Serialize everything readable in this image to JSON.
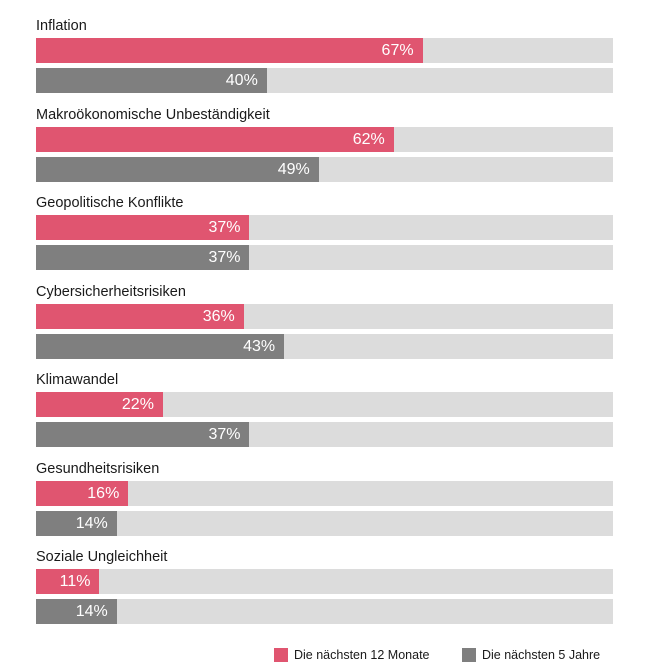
{
  "chart_data": {
    "type": "bar",
    "orientation": "horizontal",
    "categories": [
      "Inflation",
      "Makroökonomische Unbeständigkeit",
      "Geopolitische Konflikte",
      "Cybersicherheitsrisiken",
      "Klimawandel",
      "Gesundheitsrisiken",
      "Soziale Ungleichheit"
    ],
    "series": [
      {
        "name": "Die nächsten 12 Monate",
        "color": "#e05570",
        "values": [
          67,
          62,
          37,
          36,
          22,
          16,
          11
        ],
        "labels": [
          "67%",
          "62%",
          "37%",
          "36%",
          "22%",
          "16%",
          "11%"
        ]
      },
      {
        "name": "Die nächsten 5 Jahre",
        "color": "#7f7f7f",
        "values": [
          40,
          49,
          37,
          43,
          37,
          14,
          14
        ],
        "labels": [
          "40%",
          "49%",
          "37%",
          "43%",
          "37%",
          "14%",
          "14%"
        ]
      }
    ],
    "track_color": "#dcdcdc",
    "xlim": [
      0,
      100
    ],
    "unit": "%",
    "grid": false,
    "legend_position": "bottom-right"
  }
}
